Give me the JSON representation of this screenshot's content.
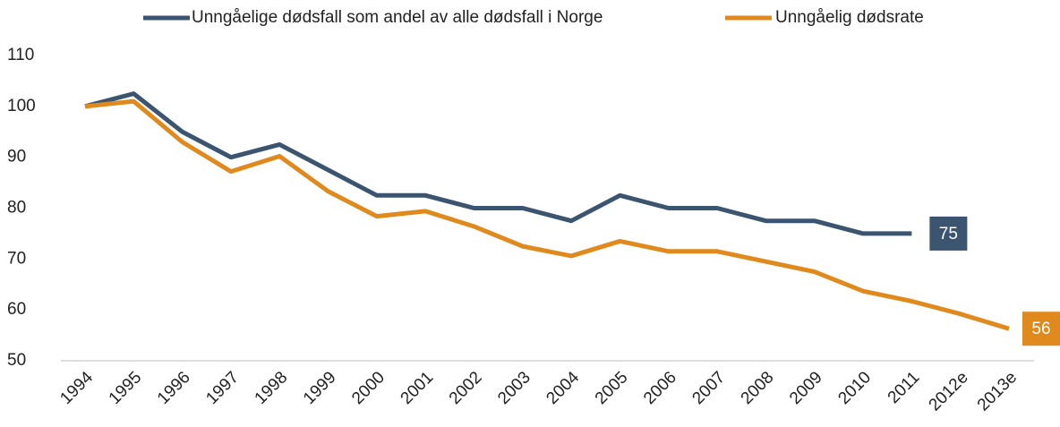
{
  "chart_data": {
    "type": "line",
    "categories": [
      "1994",
      "1995",
      "1996",
      "1997",
      "1998",
      "1999",
      "2000",
      "2001",
      "2002",
      "2003",
      "2004",
      "2005",
      "2006",
      "2007",
      "2008",
      "2009",
      "2010",
      "2011",
      "2012e",
      "2013e"
    ],
    "series": [
      {
        "name": "Unngåelige dødsfall som andel av alle dødsfall i Norge",
        "color": "#3b5470",
        "values": [
          100,
          102.5,
          95,
          90,
          92.5,
          87.5,
          82.5,
          82.5,
          80,
          80,
          77.5,
          82.5,
          80,
          80,
          77.5,
          77.5,
          75,
          75,
          null,
          null
        ],
        "value_labels": [
          null,
          null,
          null,
          null,
          null,
          null,
          null,
          null,
          null,
          null,
          null,
          null,
          null,
          null,
          null,
          null,
          null,
          "75",
          null,
          null
        ]
      },
      {
        "name": "Unngåelig dødsrate",
        "color": "#e08a1e",
        "values": [
          100,
          101,
          93,
          87.2,
          90.2,
          83.3,
          78.4,
          79.4,
          76.4,
          72.5,
          70.6,
          73.5,
          71.5,
          71.5,
          69.5,
          67.5,
          63.7,
          61.7,
          59.2,
          56.3
        ],
        "value_labels": [
          null,
          null,
          null,
          null,
          null,
          null,
          null,
          null,
          null,
          null,
          null,
          null,
          null,
          null,
          null,
          null,
          null,
          null,
          null,
          "56"
        ]
      }
    ],
    "ylim": [
      50,
      110
    ],
    "yticks": [
      50,
      60,
      70,
      80,
      90,
      100,
      110
    ],
    "grid": false,
    "legend": "top"
  }
}
